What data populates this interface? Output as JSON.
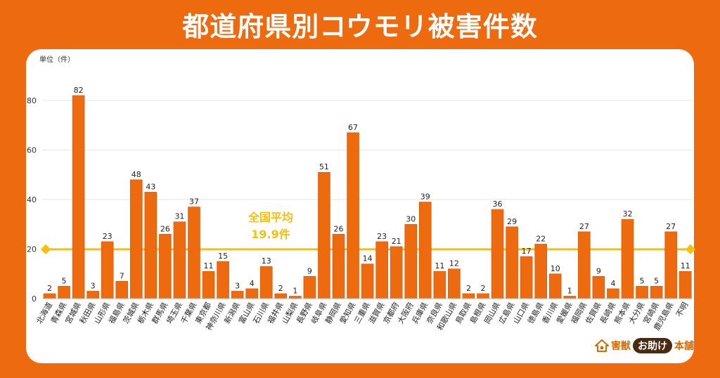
{
  "title": "都道府県別コウモリ被害件数",
  "unit_label": "単位（件）",
  "average": {
    "label_line1": "全国平均",
    "label_line2": "19.9件",
    "value": 19.9
  },
  "logo": {
    "part1": "害獣",
    "part2": "お助け",
    "part3": "本舗"
  },
  "colors": {
    "background": "#EE6A0E",
    "bar": "#EE6A0E",
    "bar_stroke": "#D4560A",
    "average_line": "#F7BE0A",
    "grid": "#E6E6E6"
  },
  "chart_data": {
    "type": "bar",
    "title": "都道府県別コウモリ被害件数",
    "ylabel": "単位（件）",
    "ylim": [
      0,
      85
    ],
    "yticks": [
      0,
      20,
      40,
      60,
      80
    ],
    "grid": true,
    "categories": [
      "北海道",
      "青森県",
      "宮城県",
      "秋田県",
      "山形県",
      "福島県",
      "茨城県",
      "栃木県",
      "群馬県",
      "埼玉県",
      "千葉県",
      "東京都",
      "神奈川県",
      "新潟県",
      "富山県",
      "石川県",
      "福井県",
      "山梨県",
      "長野県",
      "岐阜県",
      "静岡県",
      "愛知県",
      "三重県",
      "滋賀県",
      "京都府",
      "大阪府",
      "兵庫県",
      "奈良県",
      "和歌山県",
      "鳥取県",
      "島根県",
      "岡山県",
      "広島県",
      "山口県",
      "徳島県",
      "香川県",
      "愛媛県",
      "福岡県",
      "佐賀県",
      "長崎県",
      "熊本県",
      "大分県",
      "宮崎県",
      "鹿児島県",
      "不明"
    ],
    "values": [
      2,
      5,
      82,
      3,
      23,
      7,
      48,
      43,
      26,
      31,
      37,
      11,
      15,
      3,
      4,
      13,
      2,
      1,
      9,
      51,
      26,
      67,
      14,
      23,
      21,
      30,
      39,
      11,
      12,
      2,
      2,
      36,
      29,
      17,
      22,
      10,
      1,
      27,
      9,
      4,
      32,
      5,
      5,
      27,
      11
    ]
  }
}
